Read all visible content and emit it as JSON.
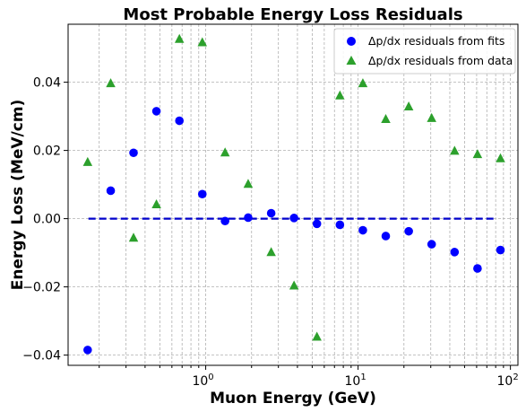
{
  "chart_data": {
    "type": "scatter",
    "title": "Most Probable Energy Loss Residuals",
    "xlabel": "Muon Energy (GeV)",
    "ylabel": "Energy Loss (MeV/cm)",
    "xscale": "log",
    "xlim": [
      0.125,
      112
    ],
    "ylim": [
      -0.043,
      0.057
    ],
    "xticks": [
      {
        "value": 1,
        "base": "10",
        "exp": "0"
      },
      {
        "value": 10,
        "base": "10",
        "exp": "1"
      },
      {
        "value": 100,
        "base": "10",
        "exp": "2"
      }
    ],
    "yticks": [
      {
        "value": -0.04,
        "label": "−0.04"
      },
      {
        "value": -0.02,
        "label": "−0.02"
      },
      {
        "value": 0.0,
        "label": "0.00"
      },
      {
        "value": 0.02,
        "label": "0.02"
      },
      {
        "value": 0.04,
        "label": "0.04"
      }
    ],
    "grid": true,
    "legend_position": "top-right",
    "reference_line": {
      "y": 0.0,
      "x_from": 0.17,
      "x_to": 80,
      "color": "#0000cc",
      "style": "dashed"
    },
    "series": [
      {
        "name": "Δp/dx residuals from fits",
        "marker": "circle",
        "color": "#0000ff",
        "x": [
          0.168,
          0.238,
          0.336,
          0.475,
          0.672,
          0.95,
          1.34,
          1.9,
          2.69,
          3.8,
          5.37,
          7.6,
          10.75,
          15.2,
          21.5,
          30.4,
          43.0,
          60.8,
          86.0
        ],
        "y": [
          -0.0385,
          0.0082,
          0.0193,
          0.0315,
          0.0287,
          0.0072,
          -0.0007,
          0.0003,
          0.0016,
          0.0002,
          -0.0015,
          -0.0018,
          -0.0034,
          -0.0051,
          -0.0037,
          -0.0075,
          -0.0098,
          -0.0146,
          -0.0092
        ]
      },
      {
        "name": "Δp/dx residuals from data",
        "marker": "triangle",
        "color": "#2ca02c",
        "x": [
          0.168,
          0.238,
          0.336,
          0.475,
          0.672,
          0.95,
          1.34,
          1.9,
          2.69,
          3.8,
          5.37,
          7.6,
          10.75,
          15.2,
          21.5,
          30.4,
          43.0,
          60.8,
          86.0
        ],
        "y": [
          0.0167,
          0.0398,
          -0.0055,
          0.0043,
          0.0528,
          0.0518,
          0.0195,
          0.0103,
          -0.0097,
          -0.0195,
          -0.0345,
          0.0362,
          0.0398,
          0.0293,
          0.033,
          0.0296,
          0.02,
          0.019,
          0.0178
        ]
      }
    ]
  }
}
